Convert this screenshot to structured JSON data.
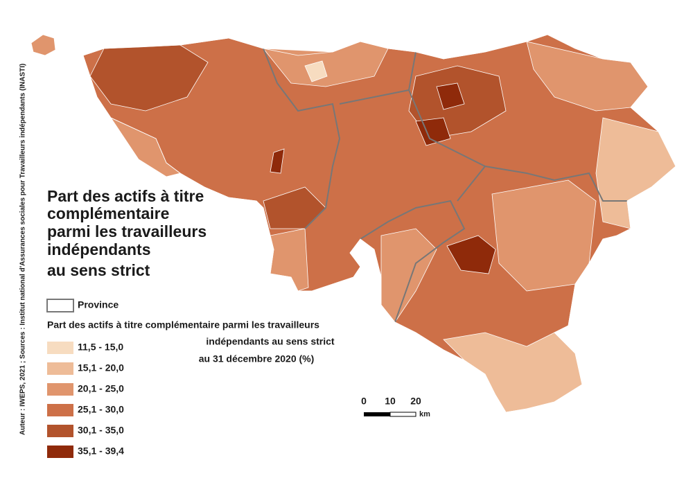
{
  "title": {
    "lines": [
      "Part des actifs à titre",
      "complémentaire",
      "parmi les travailleurs",
      "indépendants",
      "au sens strict"
    ]
  },
  "province_label": "Province",
  "legend": {
    "title_lines": [
      "Part des actifs à titre complémentaire parmi les travailleurs",
      "indépendants au sens strict",
      "au 31 décembre 2020 (%)"
    ],
    "classes": [
      {
        "label": "11,5 - 15,0",
        "color": "#f7dcc0"
      },
      {
        "label": "15,1 - 20,0",
        "color": "#eebc98"
      },
      {
        "label": "20,1 - 25,0",
        "color": "#e0956d"
      },
      {
        "label": "25,1 - 30,0",
        "color": "#cd7048"
      },
      {
        "label": "30,1 - 35,0",
        "color": "#b2532c"
      },
      {
        "label": "35,1 - 39,4",
        "color": "#8f2a0a"
      }
    ]
  },
  "scale": {
    "labels": [
      "0",
      "10",
      "20"
    ],
    "unit": "km"
  },
  "source": "Auteur : IWEPS, 2021 ; Sources : Institut national d'Assurances sociales pour Travailleurs indépendants (INASTI)"
}
